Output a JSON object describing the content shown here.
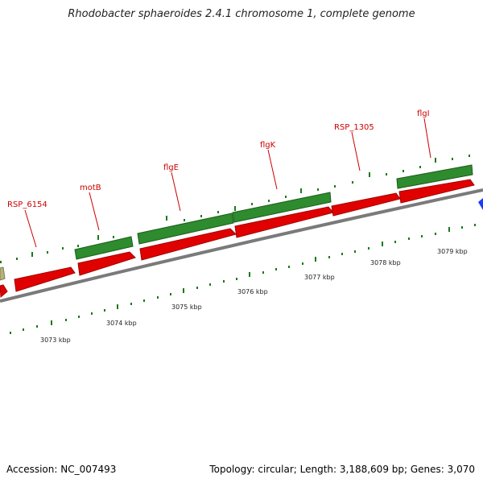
{
  "title": "Rhodobacter sphaeroides 2.4.1 chromosome 1, complete genome",
  "footer": {
    "accession": "Accession: NC_007493",
    "stats": "Topology: circular; Length: 3,188,609 bp; Genes: 3,070"
  },
  "gene_labels": [
    "RSP_6154",
    "motB",
    "flgE",
    "flgK",
    "RSP_1305",
    "flgI"
  ],
  "kbp_labels": [
    "3073 kbp",
    "3074 kbp",
    "3075 kbp",
    "3076 kbp",
    "3077 kbp",
    "3078 kbp",
    "3079 kbp"
  ],
  "colors": {
    "forward_gene": "#2e8b2e",
    "reverse_gene": "#e00000",
    "other_gene": "#b5b27a",
    "blue_marker": "#1a3cff",
    "backbone": "#8a8a8a",
    "tick": "#1a7a1a",
    "label": "#cc0000"
  }
}
